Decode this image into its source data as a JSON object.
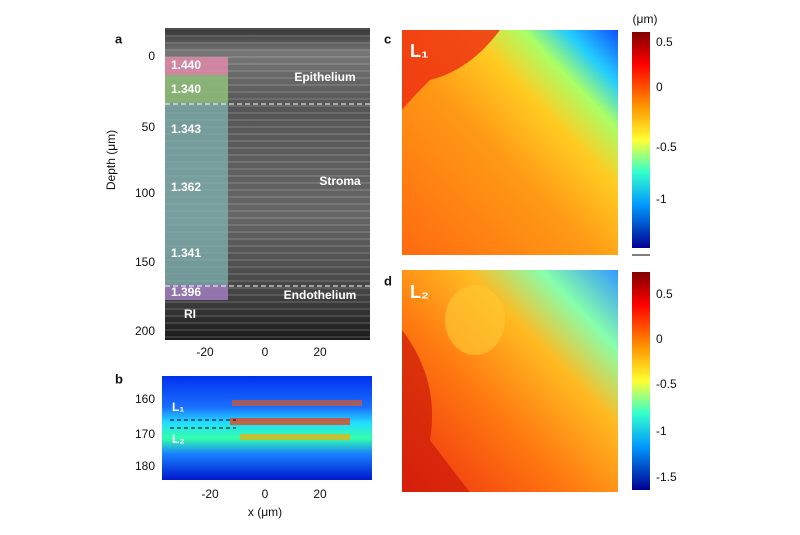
{
  "panels": [
    {
      "letter": "a",
      "y_label": "Depth (μm)",
      "yticks": [
        "0",
        "50",
        "100",
        "150",
        "200"
      ],
      "xticks": [
        "-20",
        "0",
        "20"
      ],
      "layers": [
        "1.440",
        "1.340",
        "1.343",
        "1.362",
        "1.341",
        "1.396"
      ],
      "layer_caption": "RI",
      "regions": [
        "Epithelium",
        "Stroma",
        "Endothelium"
      ]
    },
    {
      "letter": "b",
      "x_label": "x (μm)",
      "yticks": [
        "160",
        "170",
        "180"
      ],
      "xticks": [
        "-20",
        "0",
        "20"
      ],
      "lines": [
        "L₁",
        "L₂"
      ]
    },
    {
      "letter": "c",
      "map_label": "L₁",
      "unit": "(μm)",
      "colorbar_ticks": [
        "0.5",
        "0",
        "-0.5",
        "-1"
      ]
    },
    {
      "letter": "d",
      "map_label": "L₂",
      "colorbar_ticks": [
        "0.5",
        "0",
        "-0.5",
        "-1",
        "-1.5"
      ]
    }
  ]
}
